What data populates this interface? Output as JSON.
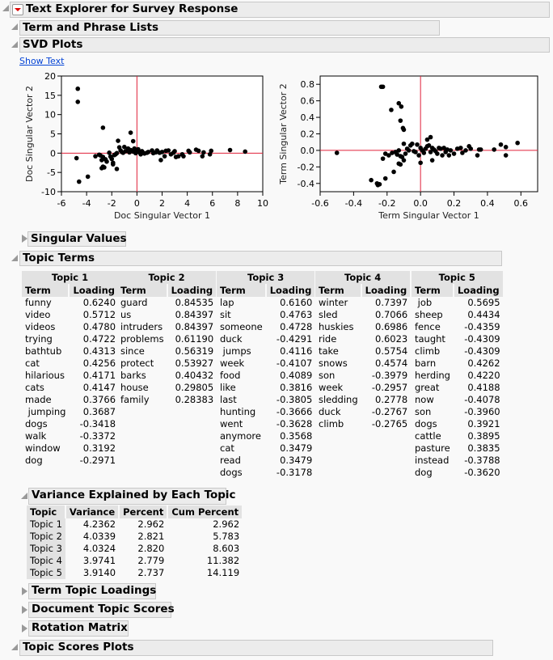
{
  "report": {
    "title": "Text Explorer for Survey Response",
    "term_phrase_lists": "Term and Phrase Lists",
    "svd_plots": "SVD Plots",
    "show_text": "Show Text",
    "singular_values": "Singular Values",
    "topic_terms": "Topic Terms",
    "variance_explained": "Variance Explained by Each Topic",
    "term_topic_loadings": "Term Topic Loadings",
    "document_topic_scores": "Document Topic Scores",
    "rotation_matrix": "Rotation Matrix",
    "topic_scores_plots": "Topic Scores Plots"
  },
  "colors": {
    "refline": "#e0203a",
    "points": "#000000",
    "header_bg": "#ececec",
    "link": "#0645d6"
  },
  "topics": [
    {
      "title": "Topic 1",
      "term_header": "Term",
      "loading_header": "Loading",
      "rows": [
        [
          "funny",
          "0.6240"
        ],
        [
          "video",
          "0.5712"
        ],
        [
          "videos",
          "0.4780"
        ],
        [
          "trying",
          "0.4722"
        ],
        [
          "bathtub",
          "0.4313"
        ],
        [
          "cat",
          "0.4256"
        ],
        [
          "hilarious",
          "0.4171"
        ],
        [
          "cats",
          "0.4147"
        ],
        [
          "made",
          "0.3766"
        ],
        [
          " jumping",
          "0.3687"
        ],
        [
          "dogs",
          "-0.3418"
        ],
        [
          "walk",
          "-0.3372"
        ],
        [
          "window",
          "0.3192"
        ],
        [
          "dog",
          "-0.2971"
        ]
      ]
    },
    {
      "title": "Topic 2",
      "term_header": "Term",
      "loading_header": "Loading",
      "rows": [
        [
          "guard",
          "0.84535"
        ],
        [
          "us",
          "0.84397"
        ],
        [
          "intruders",
          "0.84397"
        ],
        [
          "problems",
          "0.61190"
        ],
        [
          "since",
          "0.56319"
        ],
        [
          "protect",
          "0.53927"
        ],
        [
          "barks",
          "0.40432"
        ],
        [
          "house",
          "0.29805"
        ],
        [
          "family",
          "0.28383"
        ]
      ]
    },
    {
      "title": "Topic 3",
      "term_header": "Term",
      "loading_header": "Loading",
      "rows": [
        [
          "lap",
          "0.6160"
        ],
        [
          "sit",
          "0.4763"
        ],
        [
          "someone",
          "0.4728"
        ],
        [
          "duck",
          "-0.4291"
        ],
        [
          " jumps",
          "0.4116"
        ],
        [
          "week",
          "-0.4107"
        ],
        [
          "food",
          "0.4089"
        ],
        [
          "like",
          "0.3816"
        ],
        [
          "last",
          "-0.3805"
        ],
        [
          "hunting",
          "-0.3666"
        ],
        [
          "went",
          "-0.3628"
        ],
        [
          "anymore",
          "0.3568"
        ],
        [
          "cat",
          "0.3479"
        ],
        [
          "read",
          "0.3479"
        ],
        [
          "dogs",
          "-0.3178"
        ]
      ]
    },
    {
      "title": "Topic 4",
      "term_header": "Term",
      "loading_header": "Loading",
      "rows": [
        [
          "winter",
          "0.7397"
        ],
        [
          "sled",
          "0.7066"
        ],
        [
          "huskies",
          "0.6986"
        ],
        [
          "ride",
          "0.6023"
        ],
        [
          "take",
          "0.5754"
        ],
        [
          "snows",
          "0.4574"
        ],
        [
          "son",
          "-0.3979"
        ],
        [
          "week",
          "-0.2957"
        ],
        [
          "sledding",
          "0.2778"
        ],
        [
          "duck",
          "-0.2767"
        ],
        [
          "climb",
          "-0.2765"
        ]
      ]
    },
    {
      "title": "Topic 5",
      "term_header": "Term",
      "loading_header": "Loading",
      "rows": [
        [
          " job",
          "0.5695"
        ],
        [
          "sheep",
          "0.4434"
        ],
        [
          "fence",
          "-0.4359"
        ],
        [
          "taught",
          "-0.4309"
        ],
        [
          "climb",
          "-0.4309"
        ],
        [
          "barn",
          "0.4262"
        ],
        [
          "herding",
          "0.4220"
        ],
        [
          "great",
          "0.4188"
        ],
        [
          "now",
          "-0.4078"
        ],
        [
          "son",
          "-0.3960"
        ],
        [
          "dogs",
          "0.3921"
        ],
        [
          "cattle",
          "0.3895"
        ],
        [
          "pasture",
          "0.3835"
        ],
        [
          "instead",
          "-0.3788"
        ],
        [
          "dog",
          "-0.3620"
        ]
      ]
    }
  ],
  "variance_table": {
    "headers": [
      "Topic",
      "Variance",
      "Percent",
      "Cum Percent"
    ],
    "rows": [
      [
        "Topic 1",
        "4.2362",
        "2.962",
        "2.962"
      ],
      [
        "Topic 2",
        "4.0339",
        "2.821",
        "5.783"
      ],
      [
        "Topic 3",
        "4.0324",
        "2.820",
        "8.603"
      ],
      [
        "Topic 4",
        "3.9741",
        "2.779",
        "11.382"
      ],
      [
        "Topic 5",
        "3.9140",
        "2.737",
        "14.119"
      ]
    ]
  },
  "chart_data": [
    {
      "type": "scatter",
      "xlabel": "Doc Singular Vector 1",
      "ylabel": "Doc Singular Vector 2",
      "xlim": [
        -6,
        10
      ],
      "ylim": [
        -10,
        20
      ],
      "xticks": [
        -6,
        -4,
        -2,
        0,
        2,
        4,
        6,
        8,
        10
      ],
      "yticks": [
        -10,
        -5,
        0,
        5,
        10,
        15,
        20
      ],
      "tick_labels_x": [
        "-6",
        "-4",
        "-2",
        "0",
        "2",
        "4",
        "6",
        "8",
        "10"
      ],
      "tick_labels_y": [
        "-10",
        "-5",
        "0",
        "5",
        "10",
        "15",
        "20"
      ],
      "reference_lines": {
        "x": 0,
        "y": 0
      },
      "grid": false,
      "points": [
        [
          -4.7,
          16.7
        ],
        [
          -4.7,
          13.3
        ],
        [
          -4.8,
          -1.3
        ],
        [
          -4.6,
          -7.4
        ],
        [
          -3.9,
          -6.1
        ],
        [
          -2.7,
          6.6
        ],
        [
          -0.5,
          5.3
        ],
        [
          -0.3,
          3.1
        ],
        [
          -1.5,
          3.2
        ],
        [
          -1.6,
          -4.1
        ],
        [
          -1.9,
          -2.9
        ],
        [
          -1.9,
          -2.5
        ],
        [
          -2.8,
          -3.9
        ],
        [
          -2.7,
          -3.5
        ],
        [
          -2.6,
          -3.7
        ],
        [
          -2.4,
          -2.2
        ],
        [
          -2.5,
          -1.6
        ],
        [
          -2.8,
          -1.8
        ],
        [
          -3.3,
          -0.8
        ],
        [
          -3.0,
          -0.4
        ],
        [
          -2.9,
          -0.6
        ],
        [
          -2.7,
          -1.0
        ],
        [
          -2.2,
          0.1
        ],
        [
          -2.1,
          -0.9
        ],
        [
          -1.7,
          -0.3
        ],
        [
          -1.6,
          0
        ],
        [
          -1.4,
          1.5
        ],
        [
          -1.3,
          0.7
        ],
        [
          -1.2,
          0.3
        ],
        [
          -1.0,
          1.6
        ],
        [
          -0.9,
          0.5
        ],
        [
          -0.7,
          1.2
        ],
        [
          -0.6,
          0.2
        ],
        [
          -0.5,
          0.8
        ],
        [
          -0.3,
          0.4
        ],
        [
          -0.2,
          1.2
        ],
        [
          -0.1,
          0
        ],
        [
          0,
          0.6
        ],
        [
          0.1,
          1.0
        ],
        [
          0.2,
          0.2
        ],
        [
          0.3,
          -0.3
        ],
        [
          0.4,
          0.5
        ],
        [
          0.5,
          0.1
        ],
        [
          0.6,
          -0.1
        ],
        [
          0.8,
          0.1
        ],
        [
          1.2,
          0.7
        ],
        [
          1.3,
          0
        ],
        [
          1.6,
          0.7
        ],
        [
          1.8,
          0.1
        ],
        [
          1.9,
          -1.8
        ],
        [
          2.2,
          -0.8
        ],
        [
          2.3,
          0.6
        ],
        [
          2.5,
          0.7
        ],
        [
          2.7,
          -0.3
        ],
        [
          3.0,
          0.5
        ],
        [
          3.1,
          -1.0
        ],
        [
          3.3,
          -0.8
        ],
        [
          3.6,
          -0.3
        ],
        [
          3.7,
          -0.8
        ],
        [
          4.1,
          0.6
        ],
        [
          4.2,
          0.2
        ],
        [
          4.7,
          0.9
        ],
        [
          4.9,
          0.6
        ],
        [
          5.2,
          -0.8
        ],
        [
          5.3,
          0.2
        ],
        [
          5.8,
          -0.3
        ],
        [
          5.9,
          0.6
        ],
        [
          7.4,
          0.8
        ],
        [
          8.6,
          0.4
        ],
        [
          -1.8,
          -0.5
        ],
        [
          -1.1,
          0.1
        ],
        [
          0.9,
          0.3
        ],
        [
          1.5,
          0.2
        ],
        [
          2.0,
          0.3
        ],
        [
          2.9,
          0.1
        ],
        [
          -2.0,
          -1.5
        ]
      ]
    },
    {
      "type": "scatter",
      "xlabel": "Term Singular Vector 1",
      "ylabel": "Term Singular Vector 2",
      "xlim": [
        -0.6,
        0.7
      ],
      "ylim": [
        -0.5,
        0.9
      ],
      "xticks": [
        -0.6,
        -0.4,
        -0.2,
        0,
        0.2,
        0.4,
        0.6
      ],
      "yticks": [
        -0.4,
        -0.2,
        0,
        0.2,
        0.4,
        0.6,
        0.8
      ],
      "tick_labels_x": [
        "-0.6",
        "-0.4",
        "-0.2",
        "0.0",
        "0.2",
        "0.4",
        "0.6"
      ],
      "tick_labels_y": [
        "-0.4",
        "-0.2",
        "0.0",
        "0.2",
        "0.4",
        "0.6",
        "0.8"
      ],
      "reference_lines": {
        "x": 0,
        "y": 0
      },
      "grid": false,
      "points": [
        [
          -0.5,
          -0.03
        ],
        [
          -0.235,
          0.77
        ],
        [
          -0.225,
          0.77
        ],
        [
          -0.13,
          0.57
        ],
        [
          -0.115,
          0.53
        ],
        [
          -0.175,
          0.49
        ],
        [
          -0.12,
          0.36
        ],
        [
          -0.105,
          0.27
        ],
        [
          -0.1,
          0.25
        ],
        [
          -0.295,
          -0.36
        ],
        [
          -0.26,
          -0.4
        ],
        [
          -0.255,
          -0.42
        ],
        [
          -0.245,
          -0.41
        ],
        [
          -0.21,
          -0.34
        ],
        [
          -0.16,
          -0.26
        ],
        [
          -0.13,
          -0.16
        ],
        [
          -0.12,
          -0.17
        ],
        [
          -0.1,
          -0.12
        ],
        [
          0.0,
          -0.15
        ],
        [
          0.04,
          0.13
        ],
        [
          0.06,
          0.16
        ],
        [
          0.07,
          -0.12
        ],
        [
          -0.225,
          -0.1
        ],
        [
          -0.21,
          -0.04
        ],
        [
          -0.19,
          -0.06
        ],
        [
          -0.17,
          -0.03
        ],
        [
          -0.15,
          -0.02
        ],
        [
          -0.13,
          0.0
        ],
        [
          -0.12,
          -0.07
        ],
        [
          -0.1,
          0.08
        ],
        [
          -0.08,
          0.02
        ],
        [
          -0.06,
          0.06
        ],
        [
          -0.05,
          0.08
        ],
        [
          -0.03,
          -0.02
        ],
        [
          -0.02,
          0.07
        ],
        [
          -0.01,
          -0.06
        ],
        [
          0.0,
          0.03
        ],
        [
          0.01,
          0.0
        ],
        [
          0.02,
          -0.03
        ],
        [
          0.03,
          0.02
        ],
        [
          0.05,
          0.06
        ],
        [
          0.06,
          -0.02
        ],
        [
          0.08,
          0.01
        ],
        [
          0.1,
          -0.04
        ],
        [
          0.11,
          0.03
        ],
        [
          0.13,
          -0.06
        ],
        [
          0.14,
          0.03
        ],
        [
          0.16,
          0.01
        ],
        [
          0.17,
          -0.06
        ],
        [
          0.2,
          -0.04
        ],
        [
          0.22,
          0.02
        ],
        [
          0.24,
          0.03
        ],
        [
          0.25,
          -0.03
        ],
        [
          0.29,
          0.05
        ],
        [
          0.3,
          0.02
        ],
        [
          0.34,
          -0.06
        ],
        [
          0.35,
          0.01
        ],
        [
          0.36,
          0.01
        ],
        [
          0.44,
          0.01
        ],
        [
          0.48,
          0.07
        ],
        [
          0.51,
          0.04
        ],
        [
          0.51,
          -0.06
        ],
        [
          0.58,
          0.09
        ],
        [
          -0.09,
          -0.04
        ],
        [
          -0.07,
          0.0
        ],
        [
          0.12,
          0.02
        ],
        [
          0.18,
          0.0
        ],
        [
          0.27,
          0.0
        ],
        [
          -0.14,
          -0.05
        ],
        [
          0.04,
          0.05
        ],
        [
          0.09,
          -0.01
        ],
        [
          -0.04,
          -0.01
        ],
        [
          0.15,
          -0.02
        ],
        [
          -0.11,
          -0.08
        ],
        [
          0.07,
          0.03
        ]
      ]
    }
  ]
}
